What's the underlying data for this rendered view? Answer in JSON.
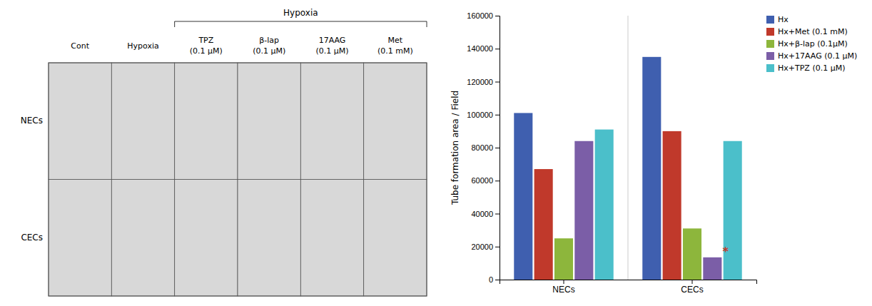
{
  "chart_data": [
    {
      "type": "bar",
      "categories": [
        "NECs",
        "CECs"
      ],
      "series": [
        {
          "name": "Hx",
          "color": "#3f5faf",
          "values": [
            101000,
            135000
          ]
        },
        {
          "name": "Hx+Met (0.1 mM)",
          "color": "#c0392b",
          "values": [
            67000,
            90000
          ]
        },
        {
          "name": "Hx+β-lap (0.1μM)",
          "color": "#8db63c",
          "values": [
            25000,
            31000
          ]
        },
        {
          "name": "Hx+17AAG (0.1 μM)",
          "color": "#7b5ea7",
          "values": [
            84000,
            13500
          ]
        },
        {
          "name": "Hx+TPZ (0.1 μM)",
          "color": "#4bbfca",
          "values": [
            91000,
            84000
          ]
        }
      ],
      "ylabel": "Tube formation area / Field",
      "ylim": [
        0,
        160000
      ],
      "yticks": [
        0,
        20000,
        40000,
        60000,
        80000,
        100000,
        120000,
        140000,
        160000
      ],
      "grid": false,
      "legend": "upper right",
      "annotations": [
        {
          "text": "*",
          "series": "Hx+17AAG (0.1 μM)",
          "category": "CECs",
          "color": "#c0392b"
        }
      ]
    },
    {
      "type": "image_grid",
      "rows": [
        "NECs",
        "CECs"
      ],
      "columns": [
        [
          "Cont"
        ],
        [
          "Hypoxia"
        ],
        [
          "TPZ",
          "(0.1 μM)"
        ],
        [
          "β-lap",
          "(0.1 μM)"
        ],
        [
          "17AAG",
          "(0.1 μM)"
        ],
        [
          "Met",
          "(0.1 mM)"
        ]
      ],
      "color": "#d8d8d8",
      "annotations": [
        {
          "text": "Hypoxia",
          "columns": [
            2,
            3,
            4,
            5
          ]
        }
      ]
    }
  ]
}
